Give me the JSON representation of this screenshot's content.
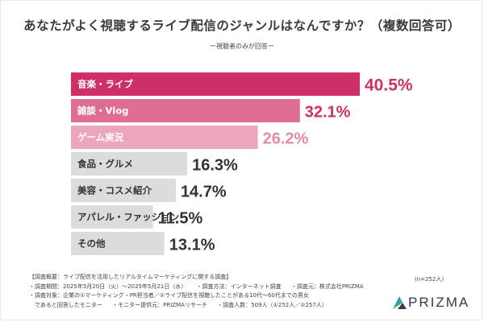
{
  "title": "あなたがよく視聴するライブ配信のジャンルはなんですか？（複数回答可）",
  "subtitle": "ー視聴者のみが回答ー",
  "chart_data": {
    "type": "bar",
    "orientation": "horizontal",
    "categories": [
      "音楽・ライブ",
      "雑談・Vlog",
      "ゲーム実況",
      "食品・グルメ",
      "美容・コスメ紹介",
      "アパレル・ファッション",
      "その他"
    ],
    "values": [
      40.5,
      32.1,
      26.2,
      16.3,
      14.7,
      11.5,
      13.1
    ],
    "value_labels": [
      "40.5%",
      "32.1%",
      "26.2%",
      "16.3%",
      "14.7%",
      "11.5%",
      "13.1%"
    ],
    "colors": [
      "#cf2f67",
      "#de6d91",
      "#eba5bd",
      "#dcdcdc",
      "#dcdcdc",
      "#dcdcdc",
      "#dcdcdc"
    ],
    "label_colors": [
      "#cf2f67",
      "#cf2f67",
      "#e58aa9",
      "#333333",
      "#333333",
      "#333333",
      "#333333"
    ],
    "xlim": [
      0,
      40.5
    ],
    "unit": "%"
  },
  "notes": {
    "overview": "【調査概要：ライブ配信を活用したリアルタイムマーケティングに関する調査】",
    "period": "・調査期間：2025年5月20日（火）〜2025年5月21日（水）",
    "method": "・調査方法：インターネット調査",
    "org": "・調査元：株式会社PRIZMA",
    "target_1": "・調査対象：企業の①マーケティング・PR担当者／②ライブ配信を視聴したことがある10代〜60代までの男女",
    "target_2": "　であると回答したモニター",
    "provider": "・モニター提供元：PRIZMAリサーチ",
    "count": "・調査人数：509人（①252人／②257人）"
  },
  "sample_size": "(n=252人)",
  "brand": {
    "name": "PRIZMA",
    "color": "#2e3d4f",
    "accent": "#2aa5a0"
  }
}
